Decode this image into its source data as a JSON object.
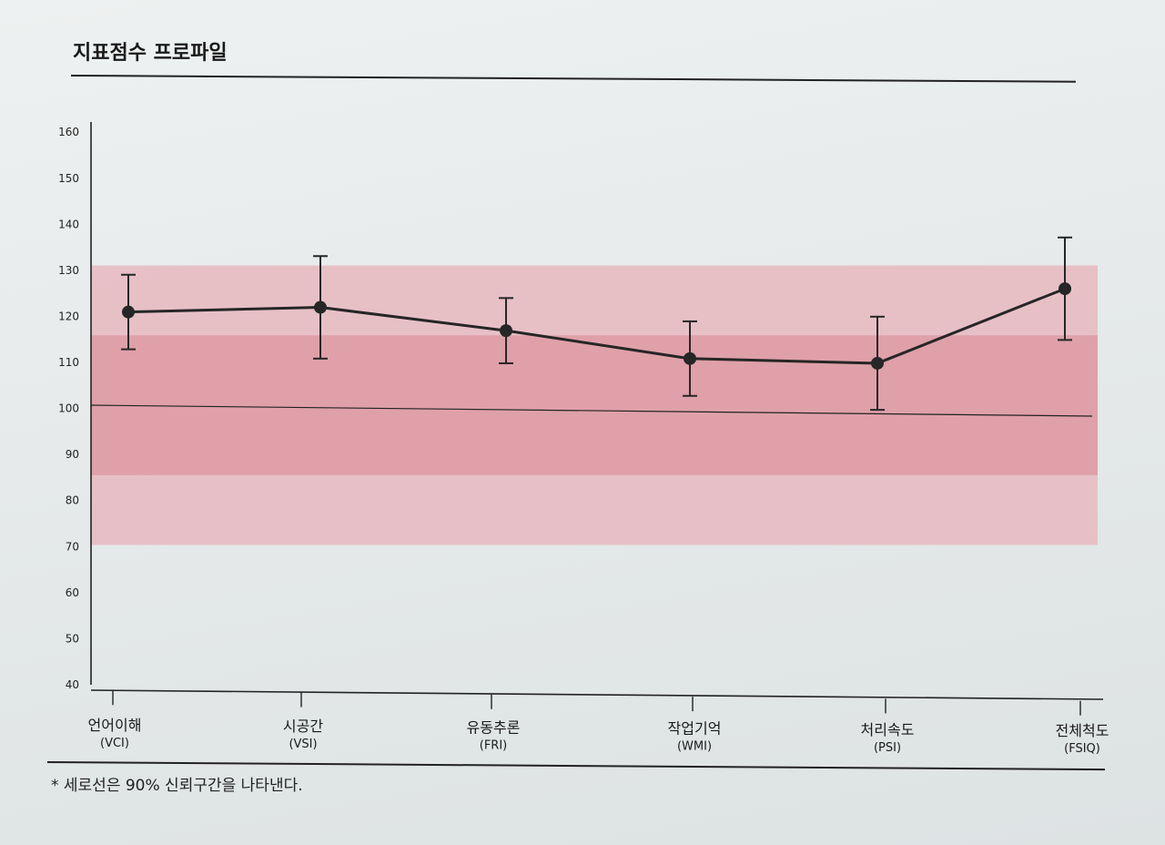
{
  "title": "지표점수 프로파일",
  "footnote": "* 세로선은 90% 신뢰구간을 나타낸다.",
  "chart_data": {
    "type": "line",
    "ylim": [
      40,
      160
    ],
    "yticks": [
      "40",
      "50",
      "60",
      "70",
      "80",
      "90",
      "100",
      "110",
      "120",
      "130",
      "140",
      "150",
      "160"
    ],
    "categories": [
      {
        "name": "언어이해",
        "abbr": "(VCI)"
      },
      {
        "name": "시공간",
        "abbr": "(VSI)"
      },
      {
        "name": "유동추론",
        "abbr": "(FRI)"
      },
      {
        "name": "작업기억",
        "abbr": "(WMI)"
      },
      {
        "name": "처리속도",
        "abbr": "(PSI)"
      },
      {
        "name": "전체척도",
        "abbr": "(FSIQ)"
      }
    ],
    "values": [
      120,
      121,
      116,
      110,
      109,
      125
    ],
    "ci_low": [
      112,
      110,
      109,
      102,
      99,
      114
    ],
    "ci_high": [
      128,
      132,
      123,
      118,
      119,
      136
    ],
    "reference_line": 100,
    "bands": [
      {
        "from": 70,
        "to": 130,
        "color": "#e6b9bf"
      },
      {
        "from": 85,
        "to": 115,
        "color": "#dd9aa3"
      }
    ],
    "line_color": "#262626"
  }
}
